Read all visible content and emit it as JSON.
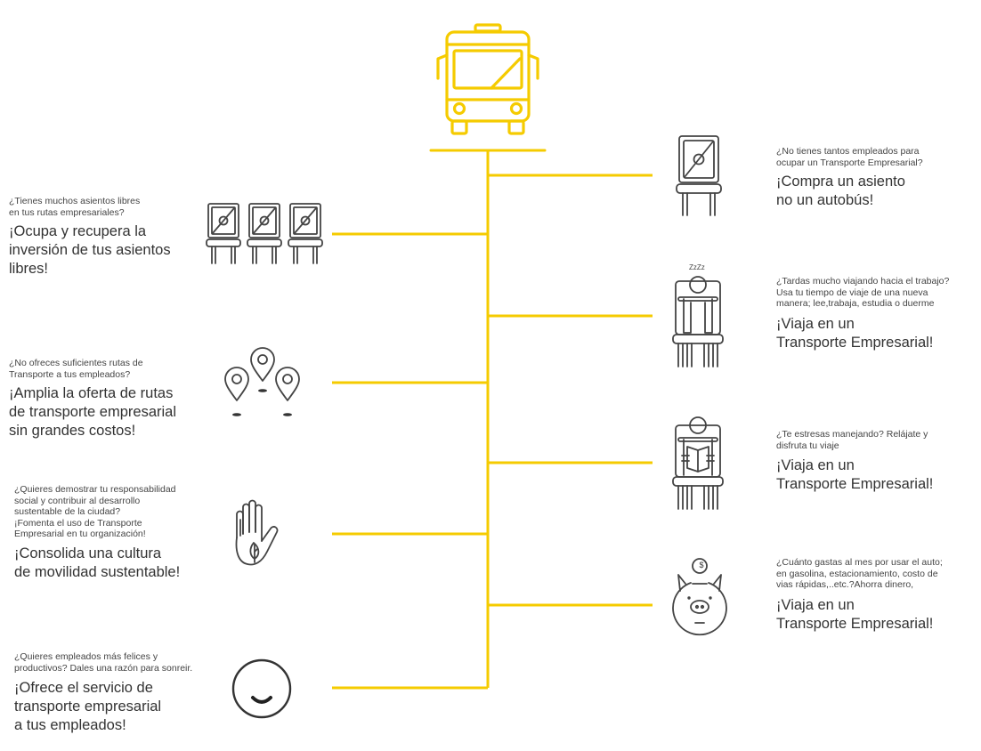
{
  "colors": {
    "accent": "#F5CB00",
    "ink": "#444444",
    "text": "#333333"
  },
  "central_icon": "bus-icon",
  "left_items": [
    {
      "icon": "three-seats-icon",
      "question": [
        "¿Tienes muchos asientos libres",
        "en tus rutas empresariales?"
      ],
      "headline": [
        "¡Ocupa y recupera  la",
        "inversión de tus asientos",
        "libres!"
      ]
    },
    {
      "icon": "map-pins-icon",
      "question": [
        "¿No ofreces suficientes rutas de",
        "Transporte a tus empleados?"
      ],
      "headline": [
        "¡Amplia la oferta de rutas",
        "de transporte empresarial",
        "sin grandes costos!"
      ]
    },
    {
      "icon": "hand-leaf-icon",
      "question": [
        "¿Quieres demostrar tu responsabilidad",
        "social y contribuir al desarrollo",
        "sustentable de la ciudad?",
        "¡Fomenta el uso de Transporte",
        "Empresarial en tu organización!"
      ],
      "headline": [
        "¡Consolida una cultura",
        "de movilidad sustentable!"
      ]
    },
    {
      "icon": "smile-icon",
      "question": [
        "¿Quieres empleados más felices y",
        "productivos? Dales una razón para sonreir."
      ],
      "headline": [
        "¡Ofrece el servicio de",
        "transporte empresarial",
        "a tus empleados!"
      ]
    }
  ],
  "right_items": [
    {
      "icon": "single-seat-icon",
      "question": [
        "¿No tienes tantos empleados para",
        "ocupar un Transporte Empresarial?"
      ],
      "headline": [
        "¡Compra un asiento",
        "no un autobús!"
      ]
    },
    {
      "icon": "sleeping-passenger-icon",
      "icon_label": "ZzZz",
      "question": [
        "¿Tardas mucho viajando hacia el trabajo?",
        "Usa tu tiempo de viaje de una nueva",
        "manera; lee,trabaja, estudia o duerme"
      ],
      "headline": [
        "¡Viaja en un",
        "Transporte Empresarial!"
      ]
    },
    {
      "icon": "reading-passenger-icon",
      "question": [
        "¿Te estresas manejando? Relájate y",
        "disfruta tu viaje"
      ],
      "headline": [
        "¡Viaja en un",
        "Transporte Empresarial!"
      ]
    },
    {
      "icon": "piggy-bank-icon",
      "icon_label": "$",
      "question": [
        "¿Cuánto gastas al mes por usar el auto;",
        "en gasolina, estacionamiento, costo de",
        "vias rápidas,..etc.?Ahorra dinero,"
      ],
      "headline": [
        "¡Viaja en un",
        "Transporte Empresarial!"
      ]
    }
  ]
}
